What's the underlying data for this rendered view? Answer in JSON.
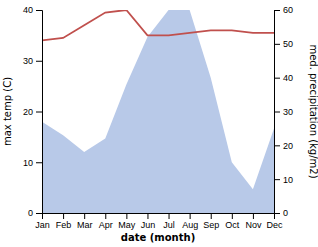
{
  "chart_data": {
    "type": "line",
    "xlabel": "date (month)",
    "ylabel": "max temp (C)",
    "y2label": "med. precipitation (kg/m2)",
    "categories": [
      "Jan",
      "Feb",
      "Mar",
      "Apr",
      "May",
      "Jun",
      "Jul",
      "Aug",
      "Sep",
      "Oct",
      "Nov",
      "Dec"
    ],
    "series": [
      {
        "type": "area",
        "axis": "y2",
        "color": "#b8c9e8",
        "values": [
          27,
          23,
          18,
          22,
          38,
          52,
          60,
          60,
          40,
          15,
          7,
          25
        ]
      },
      {
        "type": "line",
        "color": "#c0504d",
        "values": [
          34.0,
          34.5,
          37.0,
          39.5,
          40.0,
          35.0,
          35.0,
          35.5,
          36.0,
          36.0,
          35.5,
          35.5
        ]
      }
    ],
    "ylim": [
      0,
      40
    ],
    "yticks": [
      0,
      10,
      20,
      30,
      40
    ],
    "y2lim": [
      0,
      60
    ],
    "y2ticks": [
      0,
      10,
      20,
      30,
      40,
      50,
      60
    ],
    "grid": false
  }
}
